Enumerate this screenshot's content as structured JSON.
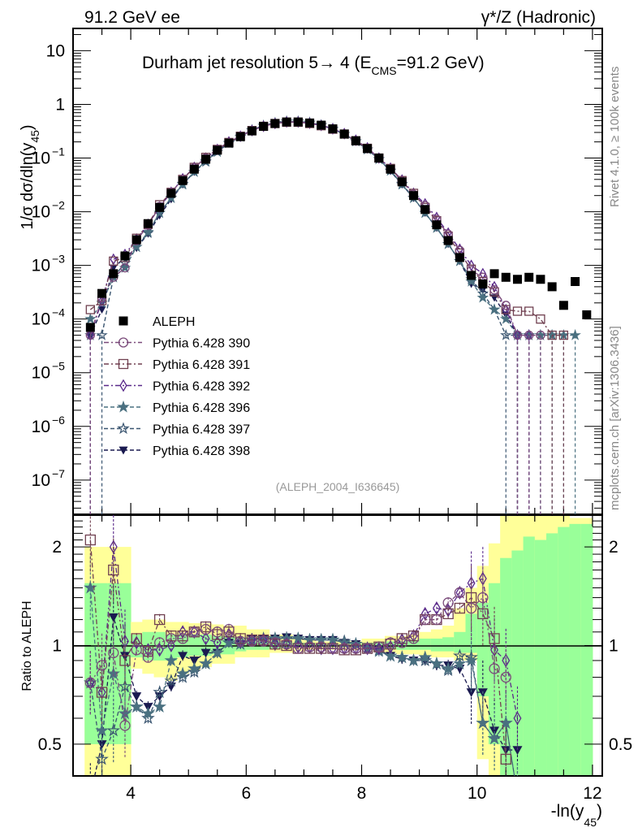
{
  "header": {
    "left_label": "91.2 GeV ee",
    "right_label": "γ*/Z (Hadronic)"
  },
  "side_labels": {
    "rivet": "Rivet 4.1.0, ≥ 100k events",
    "mcplots": "mcplots.cern.ch [arXiv:1306.3436]"
  },
  "colors": {
    "aleph": "#000000",
    "p390": "#7a4a7a",
    "p391": "#704050",
    "p392": "#5a2a8a",
    "p396": "#4a7080",
    "p397": "#3a5570",
    "p398": "#1a1a50",
    "band_inner": "#99ff99",
    "band_outer": "#ffff99",
    "ref_text": "#999999"
  },
  "chart_data": [
    {
      "type": "scatter",
      "title": "Durham jet resolution 5→ 4 (E_CMS=91.2 GeV)",
      "title_parts": {
        "main": "Durham jet resolution 5→  4 (E",
        "sub": "CMS",
        "tail": "=91.2 GeV)"
      },
      "analysis_ref": "(ALEPH_2004_I636645)",
      "xlabel": "-ln(y45)",
      "xlabel_parts": {
        "main": "-ln(y",
        "sub": "45",
        "tail": ")"
      },
      "ylabel": "1/σ dσ/dln(y45)",
      "ylabel_parts": {
        "main": "1/σ  dσ/dln(y",
        "sub": "45",
        "tail": ")"
      },
      "xlim": [
        3.0,
        12.17
      ],
      "ylim": [
        2.3e-08,
        26
      ],
      "yscale": "log",
      "ytick_labels": [
        {
          "v": 10,
          "t": "10"
        },
        {
          "v": 1,
          "t": "1"
        },
        {
          "v": 0.1,
          "t": "10",
          "e": "−1"
        },
        {
          "v": 0.01,
          "t": "10",
          "e": "−2"
        },
        {
          "v": 0.001,
          "t": "10",
          "e": "−3"
        },
        {
          "v": 0.0001,
          "t": "10",
          "e": "−4"
        },
        {
          "v": 1e-05,
          "t": "10",
          "e": "−5"
        },
        {
          "v": 1e-06,
          "t": "10",
          "e": "−6"
        },
        {
          "v": 1e-07,
          "t": "10",
          "e": "−7"
        }
      ],
      "legend_position": "center-left",
      "legend": [
        {
          "key": "aleph",
          "label": "ALEPH",
          "marker": "filled-square",
          "line": "none"
        },
        {
          "key": "p390",
          "label": "Pythia 6.428 390",
          "marker": "open-circle",
          "line": "dash-dot"
        },
        {
          "key": "p391",
          "label": "Pythia 6.428 391",
          "marker": "open-square",
          "line": "dash-dot"
        },
        {
          "key": "p392",
          "label": "Pythia 6.428 392",
          "marker": "open-diamond",
          "line": "dash-dot"
        },
        {
          "key": "p396",
          "label": "Pythia 6.428 396",
          "marker": "filled-star",
          "line": "dashed"
        },
        {
          "key": "p397",
          "label": "Pythia 6.428 397",
          "marker": "open-star",
          "line": "dashed"
        },
        {
          "key": "p398",
          "label": "Pythia 6.428 398",
          "marker": "filled-triangle-down",
          "line": "dashed"
        }
      ],
      "x": [
        3.3,
        3.5,
        3.7,
        3.9,
        4.1,
        4.3,
        4.5,
        4.7,
        4.9,
        5.1,
        5.3,
        5.5,
        5.7,
        5.9,
        6.1,
        6.3,
        6.5,
        6.7,
        6.9,
        7.1,
        7.3,
        7.5,
        7.7,
        7.9,
        8.1,
        8.3,
        8.5,
        8.7,
        8.9,
        9.1,
        9.3,
        9.5,
        9.7,
        9.9,
        10.1,
        10.3,
        10.5,
        10.7,
        10.9,
        11.1,
        11.3,
        11.5,
        11.7,
        11.9
      ],
      "series": [
        {
          "key": "aleph",
          "name": "ALEPH",
          "values": [
            7e-05,
            0.0003,
            0.0007,
            0.0015,
            0.003,
            0.006,
            0.012,
            0.022,
            0.038,
            0.062,
            0.095,
            0.14,
            0.19,
            0.25,
            0.32,
            0.39,
            0.44,
            0.47,
            0.47,
            0.45,
            0.41,
            0.35,
            0.28,
            0.21,
            0.15,
            0.1,
            0.062,
            0.036,
            0.02,
            0.011,
            0.0057,
            0.0029,
            0.0014,
            0.00065,
            0.00045,
            0.0007,
            0.0006,
            0.00055,
            0.0006,
            0.00055,
            0.0004,
            0.00018,
            0.0005,
            0.00012
          ]
        },
        {
          "key": "p390",
          "name": "Pythia 6.428 390",
          "values": [
            5e-05,
            0.00025,
            0.0006,
            0.0009,
            0.0029,
            0.0056,
            0.0125,
            0.023,
            0.04,
            0.066,
            0.1,
            0.145,
            0.195,
            0.255,
            0.325,
            0.39,
            0.44,
            0.47,
            0.47,
            0.445,
            0.405,
            0.345,
            0.28,
            0.21,
            0.15,
            0.1,
            0.063,
            0.037,
            0.021,
            0.013,
            0.0072,
            0.0038,
            0.0019,
            0.0008,
            0.0006,
            0.00035,
            0.00018,
            5e-05,
            5e-05,
            5e-05,
            null,
            null,
            null,
            null
          ]
        },
        {
          "key": "p391",
          "name": "Pythia 6.428 391",
          "values": [
            0.00015,
            0.00022,
            0.0012,
            0.0014,
            0.0032,
            0.0058,
            0.0135,
            0.023,
            0.04,
            0.067,
            0.103,
            0.145,
            0.195,
            0.255,
            0.325,
            0.39,
            0.44,
            0.465,
            0.465,
            0.44,
            0.4,
            0.345,
            0.28,
            0.21,
            0.152,
            0.1,
            0.064,
            0.038,
            0.022,
            0.012,
            0.0068,
            0.0035,
            0.0017,
            0.00085,
            0.0005,
            0.00032,
            0.00015,
            0.00014,
            0.00014,
            0.0001,
            5e-05,
            5e-05,
            null,
            null
          ]
        },
        {
          "key": "p392",
          "name": "Pythia 6.428 392",
          "values": [
            5e-05,
            0.00022,
            0.0013,
            0.0016,
            0.0031,
            0.0058,
            0.0122,
            0.023,
            0.041,
            0.067,
            0.1,
            0.145,
            0.2,
            0.255,
            0.325,
            0.39,
            0.44,
            0.47,
            0.47,
            0.445,
            0.405,
            0.35,
            0.285,
            0.215,
            0.155,
            0.1,
            0.065,
            0.039,
            0.022,
            0.014,
            0.0078,
            0.004,
            0.002,
            0.001,
            0.0007,
            0.0004,
            0.00015,
            5e-05,
            5e-05,
            null,
            null,
            null,
            null,
            null
          ]
        },
        {
          "key": "p396",
          "name": "Pythia 6.428 396",
          "values": [
            0.0001,
            0.0002,
            0.0006,
            0.0009,
            0.0022,
            0.0042,
            0.0095,
            0.018,
            0.032,
            0.055,
            0.088,
            0.13,
            0.19,
            0.25,
            0.33,
            0.4,
            0.45,
            0.48,
            0.48,
            0.455,
            0.41,
            0.35,
            0.28,
            0.205,
            0.145,
            0.095,
            0.058,
            0.032,
            0.018,
            0.0095,
            0.005,
            0.0025,
            0.0012,
            0.0005,
            0.00025,
            0.00015,
            0.0001,
            5e-05,
            5e-05,
            5e-05,
            5e-05,
            5e-05,
            5e-05,
            null
          ]
        },
        {
          "key": "p397",
          "name": "Pythia 6.428 397",
          "values": [
            5e-05,
            5e-05,
            0.0006,
            0.0011,
            0.0022,
            0.004,
            0.0095,
            0.018,
            0.033,
            0.055,
            0.085,
            0.13,
            0.19,
            0.25,
            0.33,
            0.4,
            0.45,
            0.48,
            0.48,
            0.455,
            0.41,
            0.35,
            0.28,
            0.205,
            0.145,
            0.095,
            0.058,
            0.033,
            0.018,
            0.0095,
            0.005,
            0.0025,
            0.0012,
            0.00055,
            0.0003,
            0.00015,
            5e-05,
            5e-05,
            5e-05,
            5e-05,
            5e-05,
            null,
            null,
            null
          ]
        },
        {
          "key": "p398",
          "name": "Pythia 6.428 398",
          "values": [
            5e-05,
            0.00015,
            0.0009,
            0.0014,
            0.0021,
            0.0039,
            0.0085,
            0.017,
            0.032,
            0.055,
            0.09,
            0.135,
            0.195,
            0.255,
            0.335,
            0.405,
            0.455,
            0.485,
            0.485,
            0.455,
            0.41,
            0.35,
            0.28,
            0.205,
            0.145,
            0.095,
            0.057,
            0.032,
            0.018,
            0.0095,
            0.005,
            0.0025,
            0.0012,
            0.00045,
            0.00035,
            0.00025,
            0.00012,
            5e-05,
            null,
            null,
            null,
            null,
            null,
            null
          ]
        }
      ]
    },
    {
      "type": "scatter",
      "title": "",
      "xlabel": "-ln(y45)",
      "ylabel": "Ratio to ALEPH",
      "xlim": [
        3.0,
        12.17
      ],
      "ylim": [
        0.4,
        2.5
      ],
      "yscale": "log",
      "xticks": [
        4,
        6,
        8,
        10,
        12
      ],
      "xtick_labels": [
        "4",
        "6",
        "8",
        "10",
        "12"
      ],
      "yticks": [
        0.5,
        1,
        2
      ],
      "ytick_labels": [
        "0.5",
        "1",
        "2"
      ],
      "reference_line": 1,
      "bands": {
        "x_edges": [
          3.0,
          3.2,
          3.4,
          3.6,
          3.8,
          4.0,
          4.2,
          4.4,
          4.6,
          4.8,
          5.0,
          5.2,
          5.4,
          5.6,
          5.8,
          6.0,
          6.2,
          6.4,
          6.6,
          6.8,
          7.0,
          7.2,
          7.4,
          7.6,
          7.8,
          8.0,
          8.2,
          8.4,
          8.6,
          8.8,
          9.0,
          9.2,
          9.4,
          9.6,
          9.8,
          10.0,
          10.2,
          10.4,
          10.6,
          10.8,
          11.0,
          11.2,
          11.4,
          11.6,
          11.8,
          12.0
        ],
        "outer_lo": [
          null,
          0.35,
          0.35,
          0.35,
          0.35,
          0.85,
          0.82,
          0.8,
          0.78,
          0.82,
          0.84,
          0.86,
          0.88,
          0.88,
          0.92,
          0.92,
          0.92,
          0.95,
          0.95,
          0.96,
          0.97,
          0.97,
          0.97,
          0.97,
          0.97,
          0.97,
          0.96,
          0.95,
          0.94,
          0.94,
          0.93,
          0.92,
          0.92,
          0.9,
          0.9,
          0.45,
          0.35,
          0.35,
          0.35,
          0.35,
          0.35,
          0.35,
          0.35,
          0.35,
          0.35
        ],
        "outer_hi": [
          null,
          2.0,
          2.0,
          2.0,
          2.0,
          1.18,
          1.2,
          1.2,
          1.18,
          1.18,
          1.17,
          1.17,
          1.16,
          1.15,
          1.15,
          1.12,
          1.12,
          1.08,
          1.08,
          1.05,
          1.04,
          1.03,
          1.03,
          1.03,
          1.03,
          1.05,
          1.05,
          1.07,
          1.07,
          1.08,
          1.1,
          1.12,
          1.15,
          1.3,
          1.5,
          1.75,
          2.05,
          2.5,
          2.5,
          2.5,
          2.5,
          2.5,
          2.5,
          2.45,
          2.45
        ],
        "inner_lo": [
          null,
          0.5,
          0.5,
          0.5,
          0.5,
          0.92,
          0.9,
          0.9,
          0.9,
          0.92,
          0.93,
          0.93,
          0.94,
          0.94,
          0.96,
          0.97,
          0.97,
          0.98,
          0.98,
          0.99,
          0.99,
          0.99,
          0.99,
          0.99,
          0.99,
          0.99,
          0.98,
          0.98,
          0.97,
          0.97,
          0.97,
          0.96,
          0.96,
          0.95,
          0.95,
          0.7,
          0.5,
          0.35,
          0.35,
          0.35,
          0.35,
          0.35,
          0.35,
          0.35,
          0.35
        ],
        "inner_hi": [
          null,
          1.55,
          1.55,
          1.55,
          1.55,
          1.08,
          1.1,
          1.1,
          1.08,
          1.08,
          1.08,
          1.08,
          1.07,
          1.07,
          1.06,
          1.05,
          1.05,
          1.03,
          1.03,
          1.02,
          1.02,
          1.01,
          1.01,
          1.01,
          1.01,
          1.02,
          1.02,
          1.03,
          1.03,
          1.04,
          1.05,
          1.05,
          1.06,
          1.1,
          1.25,
          1.35,
          1.55,
          1.85,
          1.95,
          2.15,
          2.1,
          2.2,
          2.3,
          2.35,
          2.35
        ]
      },
      "x": [
        3.3,
        3.5,
        3.7,
        3.9,
        4.1,
        4.3,
        4.5,
        4.7,
        4.9,
        5.1,
        5.3,
        5.5,
        5.7,
        5.9,
        6.1,
        6.3,
        6.5,
        6.7,
        6.9,
        7.1,
        7.3,
        7.5,
        7.7,
        7.9,
        8.1,
        8.3,
        8.5,
        8.7,
        8.9,
        9.1,
        9.3,
        9.5,
        9.7,
        9.9,
        10.1,
        10.3,
        10.5,
        10.7
      ],
      "series": [
        {
          "key": "p390",
          "name": "Pythia 6.428 390",
          "values": [
            0.77,
            0.87,
            0.95,
            0.57,
            0.97,
            0.92,
            1.02,
            1.05,
            1.05,
            1.1,
            1.12,
            1.1,
            1.12,
            1.03,
            1.03,
            1.03,
            1.02,
            1.01,
            0.98,
            0.99,
            0.99,
            0.98,
            0.98,
            0.98,
            0.98,
            0.99,
            1.02,
            1.02,
            1.05,
            1.2,
            1.2,
            1.35,
            1.45,
            1.3,
            1.4,
            0.85,
            0.8,
            null
          ]
        },
        {
          "key": "p391",
          "name": "Pythia 6.428 391",
          "values": [
            2.1,
            0.72,
            1.7,
            0.9,
            1.05,
            0.96,
            1.2,
            1.07,
            1.07,
            1.1,
            1.14,
            1.08,
            1.1,
            1.05,
            1.04,
            1.04,
            1.01,
            1.0,
            0.98,
            0.98,
            0.98,
            0.98,
            0.97,
            0.97,
            0.98,
            0.99,
            1.01,
            1.05,
            1.07,
            1.2,
            1.2,
            1.25,
            1.3,
            1.4,
            1.25,
            1.05,
            0.45,
            null
          ]
        },
        {
          "key": "p392",
          "name": "Pythia 6.428 392",
          "values": [
            0.77,
            0.72,
            2.0,
            1.03,
            1.02,
            0.97,
            0.97,
            1.0,
            1.1,
            1.1,
            1.05,
            1.02,
            1.08,
            1.03,
            1.04,
            1.04,
            1.01,
            1.01,
            0.99,
            0.99,
            0.98,
            0.98,
            0.98,
            0.98,
            0.98,
            0.98,
            0.99,
            1.04,
            1.07,
            1.25,
            1.3,
            1.28,
            1.45,
            1.55,
            1.6,
            0.97,
            0.9,
            0.6
          ]
        },
        {
          "key": "p396",
          "name": "Pythia 6.428 396",
          "values": [
            1.5,
            0.55,
            0.82,
            0.62,
            0.65,
            0.62,
            0.65,
            0.9,
            0.82,
            0.85,
            0.88,
            0.95,
            1.02,
            1.01,
            1.04,
            1.05,
            1.05,
            1.05,
            1.05,
            1.04,
            1.04,
            1.04,
            1.02,
            1.01,
            0.98,
            0.96,
            0.93,
            0.92,
            0.9,
            0.92,
            0.88,
            0.85,
            0.88,
            0.9,
            0.58,
            0.52,
            0.58,
            0.35
          ]
        },
        {
          "key": "p397",
          "name": "Pythia 6.428 397",
          "values": [
            0.77,
            0.45,
            0.55,
            0.75,
            0.65,
            0.6,
            0.72,
            0.78,
            0.8,
            0.83,
            0.88,
            0.95,
            1.02,
            1.01,
            1.04,
            1.05,
            1.05,
            1.05,
            1.05,
            1.04,
            1.04,
            1.04,
            1.03,
            1.01,
            0.98,
            0.97,
            0.93,
            0.92,
            0.9,
            0.9,
            0.88,
            0.84,
            0.93,
            0.92,
            0.58,
            0.52,
            0.58,
            0.35
          ]
        },
        {
          "key": "p398",
          "name": "Pythia 6.428 398",
          "values": [
            0.35,
            0.5,
            1.22,
            0.93,
            0.7,
            0.65,
            0.7,
            0.75,
            0.93,
            0.9,
            0.95,
            0.95,
            1.02,
            1.01,
            1.05,
            1.05,
            1.05,
            1.06,
            1.05,
            1.04,
            1.04,
            1.04,
            1.02,
            1.01,
            0.98,
            0.97,
            0.93,
            0.91,
            0.9,
            0.9,
            0.87,
            0.87,
            0.85,
            0.72,
            0.72,
            0.55,
            0.48,
            0.48
          ]
        }
      ]
    }
  ]
}
